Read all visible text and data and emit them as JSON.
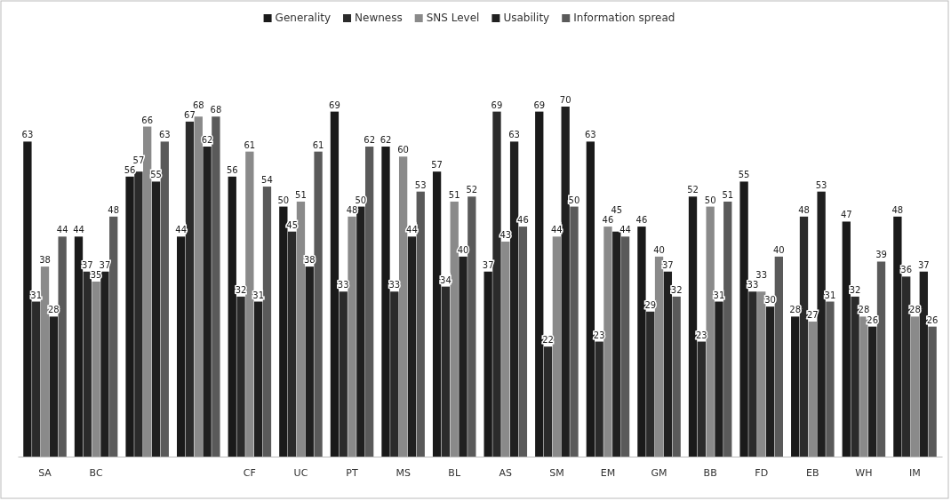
{
  "chart_data": {
    "type": "bar",
    "categories": [
      "SA",
      "BC",
      null,
      null,
      "CF",
      "UC",
      "PT",
      "MS",
      "BL",
      "AS",
      "SM",
      "EM",
      "GM",
      "BB",
      "FD",
      "EB",
      "WH",
      "IM"
    ],
    "series": [
      {
        "name": "Generality",
        "color": "#1a1a1a",
        "values": [
          63,
          44,
          56,
          44,
          56,
          50,
          69,
          62,
          57,
          37,
          69,
          63,
          46,
          52,
          55,
          28,
          47,
          48
        ]
      },
      {
        "name": "Newness",
        "color": "#2b2b2b",
        "values": [
          31,
          37,
          57,
          67,
          32,
          45,
          33,
          33,
          34,
          69,
          22,
          23,
          29,
          23,
          33,
          48,
          32,
          36
        ]
      },
      {
        "name": "SNS Level",
        "color": "#8a8a8a",
        "values": [
          38,
          35,
          66,
          68,
          61,
          51,
          48,
          60,
          51,
          43,
          44,
          46,
          40,
          50,
          33,
          27,
          28,
          28
        ]
      },
      {
        "name": "Usability",
        "color": "#202020",
        "values": [
          28,
          37,
          55,
          62,
          31,
          38,
          50,
          44,
          40,
          63,
          70,
          45,
          37,
          31,
          30,
          53,
          26,
          37
        ]
      },
      {
        "name": "Information spread",
        "color": "#5a5a5a",
        "values": [
          44,
          48,
          63,
          68,
          54,
          61,
          62,
          53,
          52,
          46,
          50,
          44,
          32,
          51,
          40,
          31,
          39,
          26
        ]
      }
    ],
    "tick_labels": "x",
    "data_labels": true,
    "legend": "top"
  }
}
